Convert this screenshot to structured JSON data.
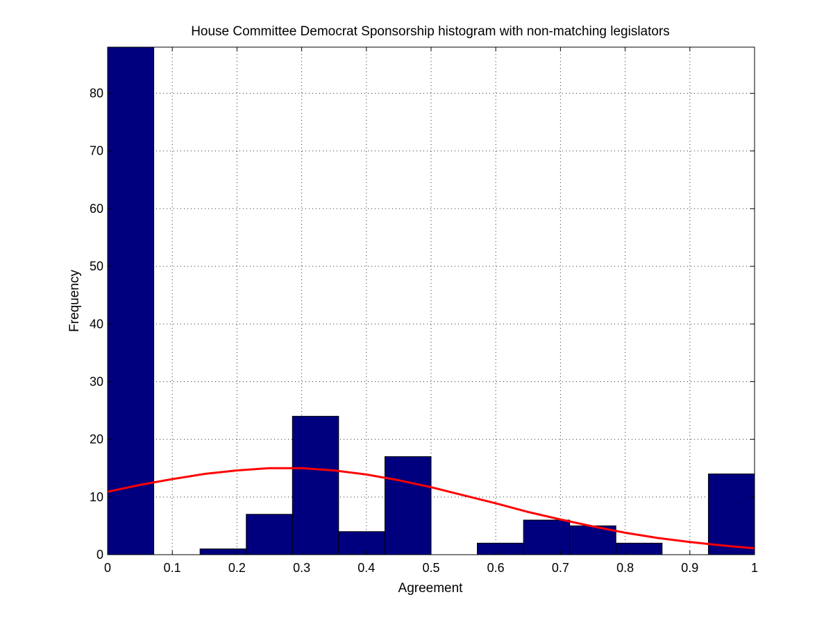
{
  "chart_data": {
    "type": "bar",
    "title": "House Committee Democrat Sponsorship histogram with non-matching legislators",
    "xlabel": "Agreement",
    "ylabel": "Frequency",
    "xlim": [
      0,
      1
    ],
    "ylim": [
      0,
      88
    ],
    "grid": true,
    "x_ticks": [
      0,
      0.1,
      0.2,
      0.3,
      0.4,
      0.5,
      0.6,
      0.7,
      0.8,
      0.9,
      1
    ],
    "x_tick_labels": [
      "0",
      "0.1",
      "0.2",
      "0.3",
      "0.4",
      "0.5",
      "0.6",
      "0.7",
      "0.8",
      "0.9",
      "1"
    ],
    "y_ticks": [
      0,
      10,
      20,
      30,
      40,
      50,
      60,
      70,
      80
    ],
    "y_tick_labels": [
      "0",
      "10",
      "20",
      "30",
      "40",
      "50",
      "60",
      "70",
      "80"
    ],
    "bin_edges": [
      0,
      0.0714,
      0.1429,
      0.2143,
      0.2857,
      0.3571,
      0.4286,
      0.5,
      0.5714,
      0.6429,
      0.7143,
      0.7857,
      0.8571,
      0.9286,
      1.0
    ],
    "values": [
      88,
      0,
      1,
      7,
      24,
      4,
      17,
      0,
      2,
      6,
      5,
      2,
      0,
      14
    ],
    "bar_color": "#00007f",
    "fit_curve": {
      "color": "#ff0000",
      "x": [
        0,
        0.05,
        0.1,
        0.15,
        0.2,
        0.25,
        0.3,
        0.35,
        0.4,
        0.45,
        0.5,
        0.55,
        0.6,
        0.65,
        0.7,
        0.75,
        0.8,
        0.85,
        0.9,
        0.95,
        1.0
      ],
      "y": [
        10.9,
        12.1,
        13.1,
        14.0,
        14.6,
        15.0,
        15.0,
        14.6,
        13.9,
        12.9,
        11.7,
        10.3,
        8.9,
        7.4,
        6.1,
        4.9,
        3.8,
        2.9,
        2.2,
        1.6,
        1.1
      ]
    }
  }
}
